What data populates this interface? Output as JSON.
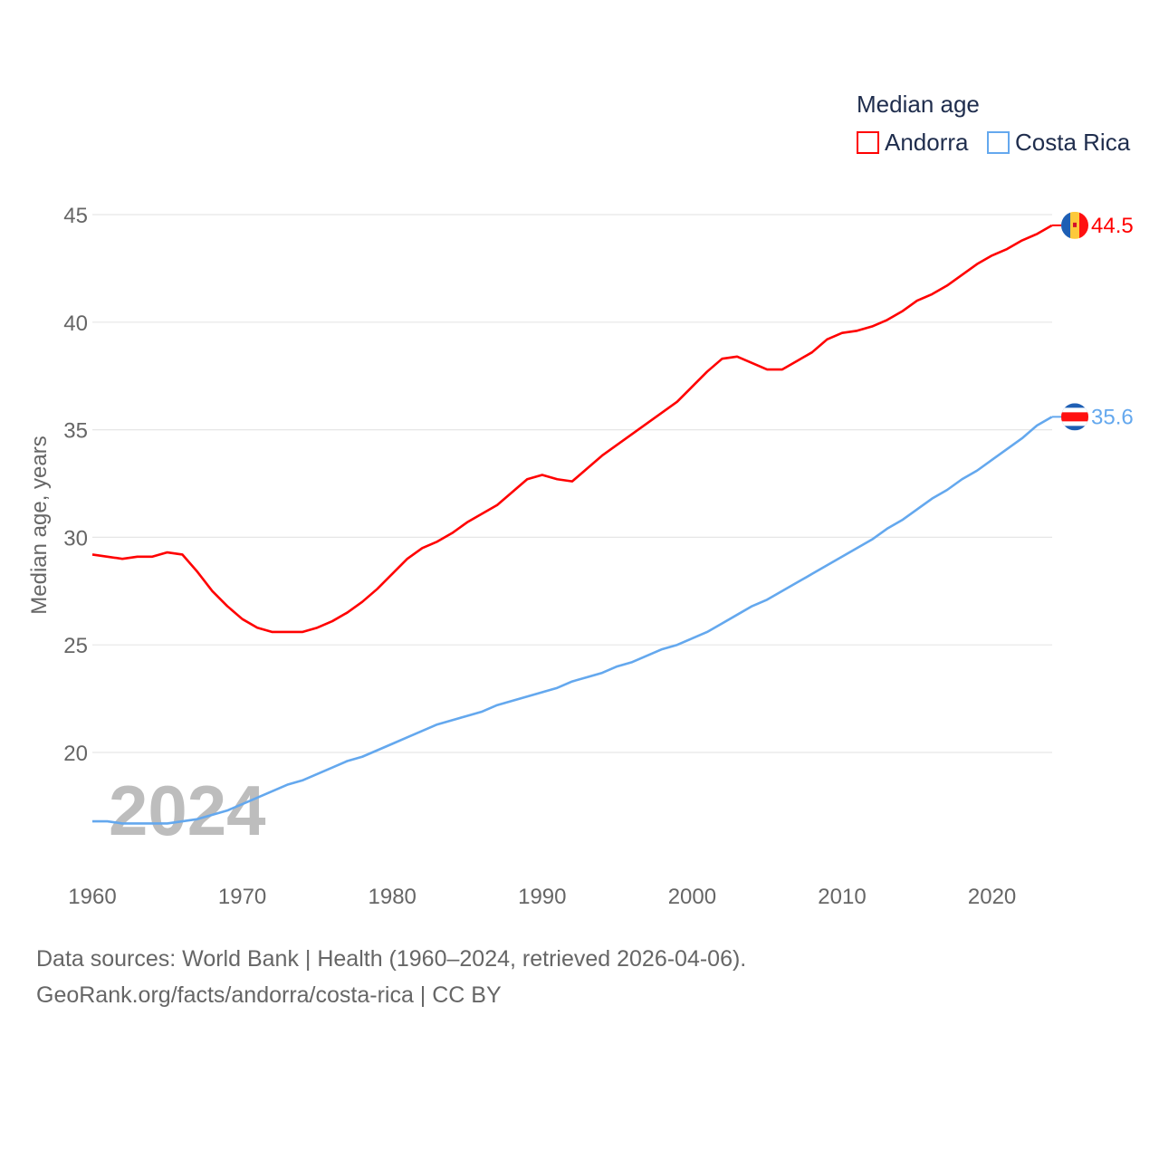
{
  "chart_data": {
    "type": "line",
    "title": "Median age",
    "xlabel": "",
    "ylabel": "Median age, years",
    "xlim": [
      1960,
      2024
    ],
    "ylim": [
      15,
      46
    ],
    "x_ticks": [
      1960,
      1970,
      1980,
      1990,
      2000,
      2010,
      2020
    ],
    "y_ticks": [
      20,
      25,
      30,
      35,
      40,
      45
    ],
    "grid": true,
    "legend_position": "top-right",
    "year_watermark": "2024",
    "x": [
      1960,
      1961,
      1962,
      1963,
      1964,
      1965,
      1966,
      1967,
      1968,
      1969,
      1970,
      1971,
      1972,
      1973,
      1974,
      1975,
      1976,
      1977,
      1978,
      1979,
      1980,
      1981,
      1982,
      1983,
      1984,
      1985,
      1986,
      1987,
      1988,
      1989,
      1990,
      1991,
      1992,
      1993,
      1994,
      1995,
      1996,
      1997,
      1998,
      1999,
      2000,
      2001,
      2002,
      2003,
      2004,
      2005,
      2006,
      2007,
      2008,
      2009,
      2010,
      2011,
      2012,
      2013,
      2014,
      2015,
      2016,
      2017,
      2018,
      2019,
      2020,
      2021,
      2022,
      2023,
      2024
    ],
    "series": [
      {
        "name": "Andorra",
        "color": "#ff0000",
        "end_label": "44.5",
        "values": [
          29.2,
          29.1,
          29.0,
          29.1,
          29.1,
          29.3,
          29.2,
          28.4,
          27.5,
          26.8,
          26.2,
          25.8,
          25.6,
          25.6,
          25.6,
          25.8,
          26.1,
          26.5,
          27.0,
          27.6,
          28.3,
          29.0,
          29.5,
          29.8,
          30.2,
          30.7,
          31.1,
          31.5,
          32.1,
          32.7,
          32.9,
          32.7,
          32.6,
          33.2,
          33.8,
          34.3,
          34.8,
          35.3,
          35.8,
          36.3,
          37.0,
          37.7,
          38.3,
          38.4,
          38.1,
          37.8,
          37.8,
          38.2,
          38.6,
          39.2,
          39.5,
          39.6,
          39.8,
          40.1,
          40.5,
          41.0,
          41.3,
          41.7,
          42.2,
          42.7,
          43.1,
          43.4,
          43.8,
          44.1,
          44.5
        ]
      },
      {
        "name": "Costa Rica",
        "color": "#64a8ee",
        "end_label": "35.6",
        "values": [
          16.8,
          16.8,
          16.7,
          16.7,
          16.7,
          16.7,
          16.8,
          16.9,
          17.1,
          17.3,
          17.6,
          17.9,
          18.2,
          18.5,
          18.7,
          19.0,
          19.3,
          19.6,
          19.8,
          20.1,
          20.4,
          20.7,
          21.0,
          21.3,
          21.5,
          21.7,
          21.9,
          22.2,
          22.4,
          22.6,
          22.8,
          23.0,
          23.3,
          23.5,
          23.7,
          24.0,
          24.2,
          24.5,
          24.8,
          25.0,
          25.3,
          25.6,
          26.0,
          26.4,
          26.8,
          27.1,
          27.5,
          27.9,
          28.3,
          28.7,
          29.1,
          29.5,
          29.9,
          30.4,
          30.8,
          31.3,
          31.8,
          32.2,
          32.7,
          33.1,
          33.6,
          34.1,
          34.6,
          35.2,
          35.6
        ]
      }
    ]
  },
  "footer": {
    "line1": "Data sources: World Bank | Health (1960–2024, retrieved 2026-04-06).",
    "line2": "GeoRank.org/facts/andorra/costa-rica | CC BY"
  }
}
